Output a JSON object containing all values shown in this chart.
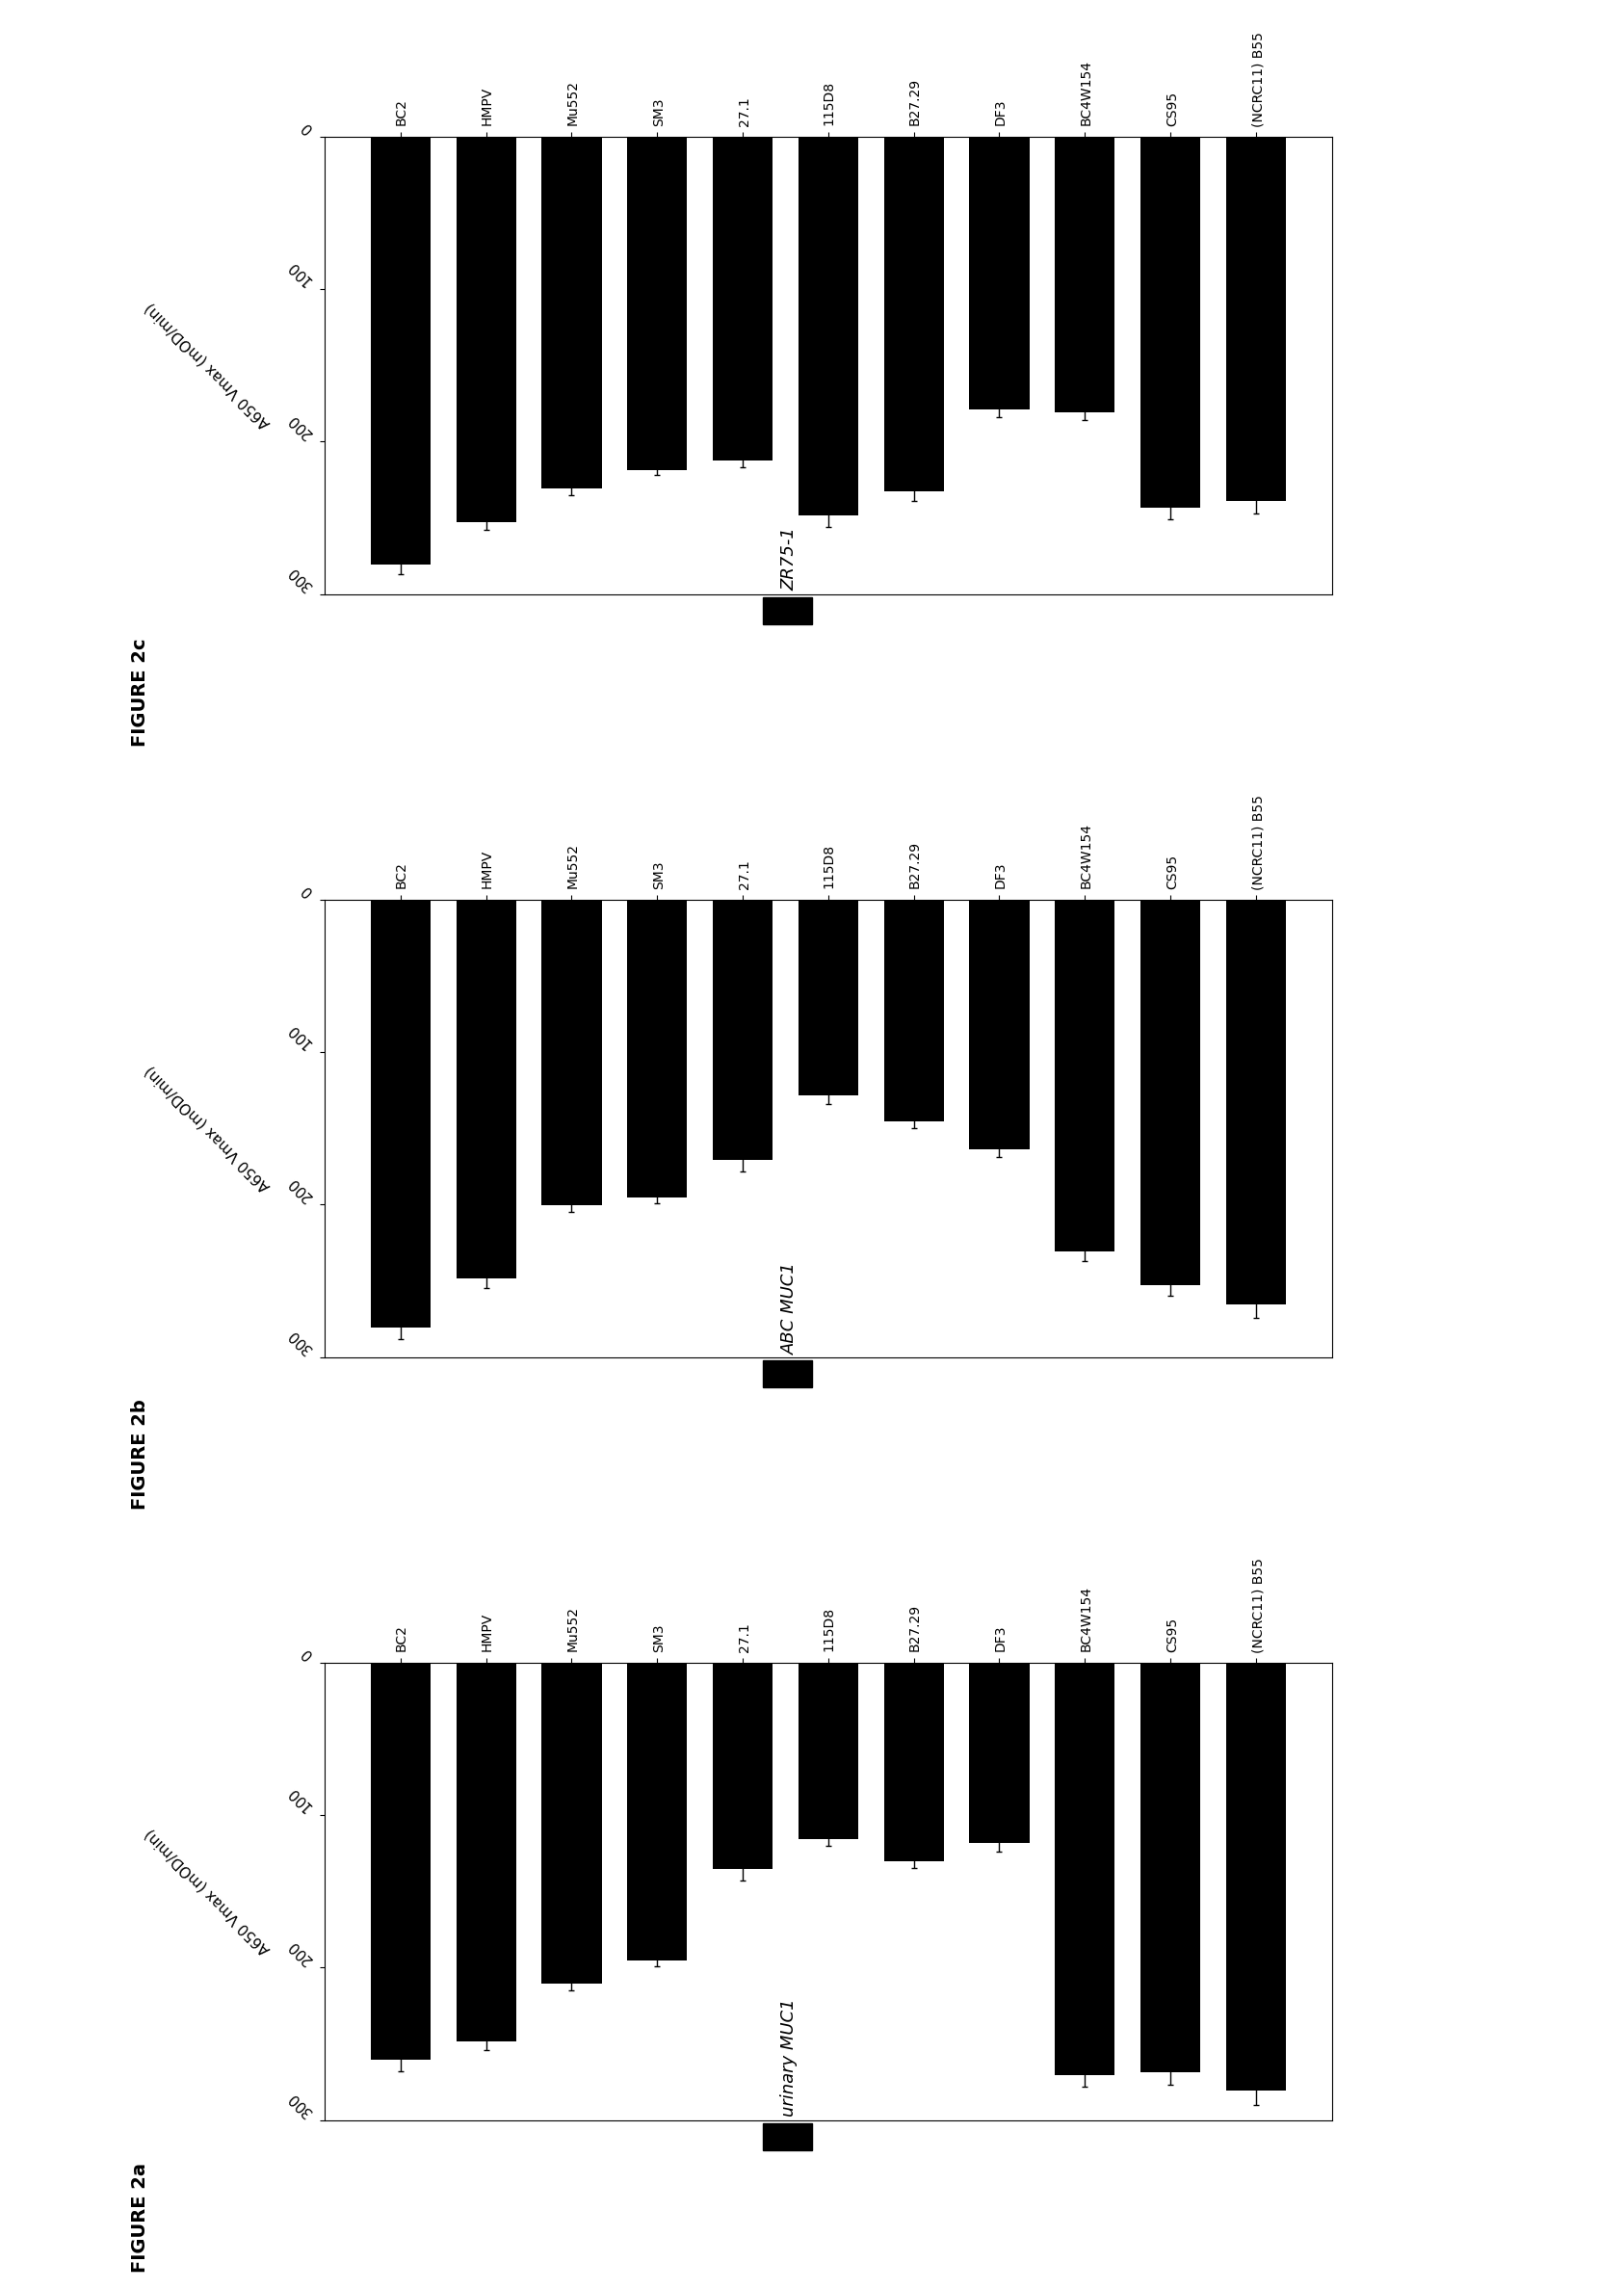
{
  "figures": [
    {
      "title": "FIGURE 2a",
      "antigen": "urinary MUC1",
      "xlabel": "A650 Vmax (mOD/min)",
      "labels": [
        "BC2",
        "HMPV",
        "Mu552",
        "SM3",
        "27.1",
        "115D8",
        "B27.29",
        "DF3",
        "BC4W154",
        "CS95",
        "(NCRC11) B55"
      ],
      "values": [
        260,
        248,
        210,
        195,
        135,
        115,
        130,
        118,
        270,
        268,
        280
      ],
      "errors": [
        8,
        6,
        5,
        4,
        8,
        5,
        5,
        6,
        8,
        9,
        10
      ]
    },
    {
      "title": "FIGURE 2b",
      "antigen": "ABC MUC1",
      "xlabel": "A650 Vmax (mOD/min)",
      "labels": [
        "BC2",
        "HMPV",
        "Mu552",
        "SM3",
        "27.1",
        "115D8",
        "B27.29",
        "DF3",
        "BC4W154",
        "CS95",
        "(NCRC11) B55"
      ],
      "values": [
        280,
        248,
        200,
        195,
        170,
        128,
        145,
        163,
        230,
        252,
        265
      ],
      "errors": [
        8,
        7,
        5,
        4,
        8,
        6,
        5,
        6,
        7,
        8,
        9
      ]
    },
    {
      "title": "FIGURE 2c",
      "antigen": "ZR75-1",
      "xlabel": "A650 Vmax (mOD/min)",
      "labels": [
        "BC2",
        "HMPV",
        "Mu552",
        "SM3",
        "27.1",
        "115D8",
        "B27.29",
        "DF3",
        "BC4W154",
        "CS95",
        "(NCRC11) B55"
      ],
      "values": [
        280,
        252,
        230,
        218,
        212,
        248,
        232,
        178,
        180,
        243,
        238
      ],
      "errors": [
        7,
        6,
        5,
        4,
        5,
        8,
        7,
        6,
        6,
        8,
        9
      ]
    }
  ],
  "xlim": [
    0,
    300
  ],
  "xticks": [
    0,
    100,
    200,
    300
  ],
  "bar_color": "#000000",
  "bar_height": 0.7,
  "bg_color": "#ffffff",
  "fig_label_fontsize": 14,
  "antigen_fontsize": 13,
  "tick_fontsize": 11,
  "label_fontsize": 10,
  "xlabel_fontsize": 11
}
